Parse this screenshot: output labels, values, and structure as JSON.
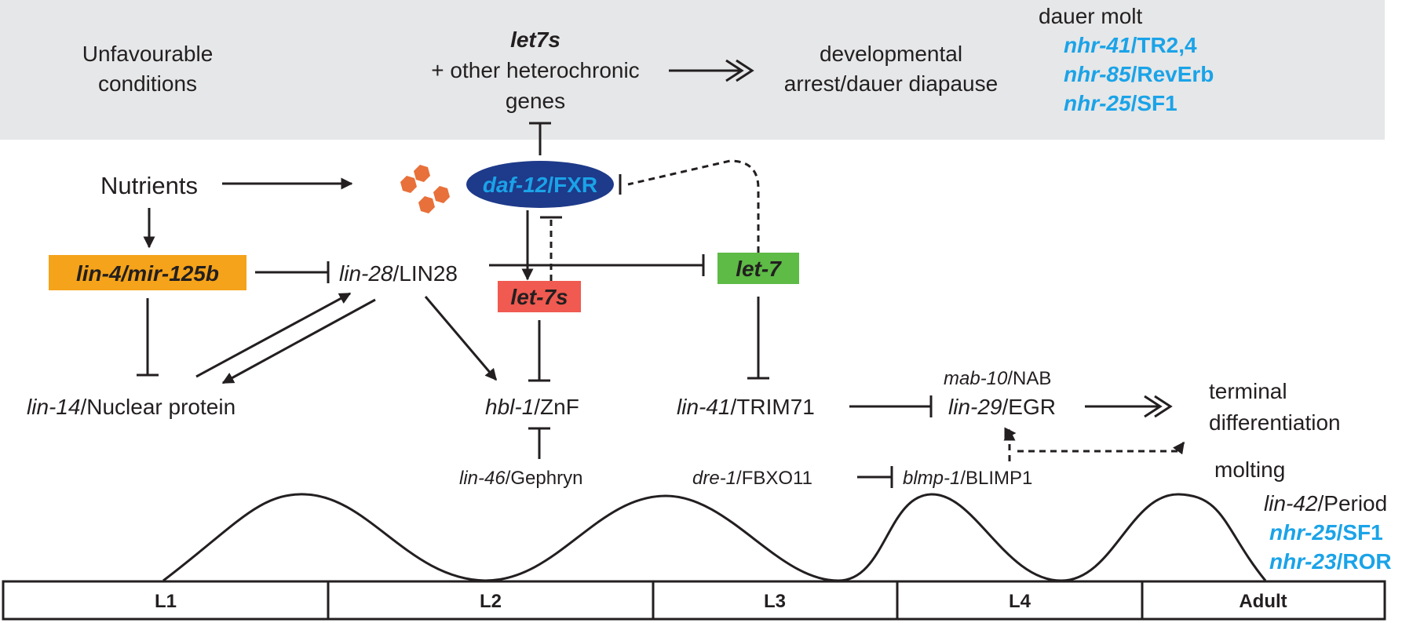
{
  "top_panel": {
    "unfavourable_1": "Unfavourable",
    "unfavourable_2": "conditions",
    "let7s_title": "let7s",
    "other_genes_1": "+ other heterochronic",
    "other_genes_2": "genes",
    "arrest_1": "developmental",
    "arrest_2": "arrest/dauer diapause",
    "dauer_molt": "dauer molt",
    "dauer_genes": [
      {
        "gene": "nhr-41",
        "protein": "/TR2,4"
      },
      {
        "gene": "nhr-85",
        "protein": "/RevErb"
      },
      {
        "gene": "nhr-25",
        "protein": "/SF1"
      }
    ]
  },
  "nodes": {
    "nutrients": "Nutrients",
    "daf12_gene": "daf-12",
    "daf12_protein": "/FXR",
    "lin4": "lin-4/mir-125b",
    "lin28_gene": "lin-28",
    "lin28_protein": "/LIN28",
    "let7s_box": "let-7s",
    "let7_box": "let-7",
    "lin14_gene": "lin-14",
    "lin14_protein": "/Nuclear protein",
    "hbl1_gene": "hbl-1",
    "hbl1_protein": "/ZnF",
    "lin46_gene": "lin-46",
    "lin46_protein": "/Gephryn",
    "lin41_gene": "lin-41",
    "lin41_protein": "/TRIM71",
    "mab10_gene": "mab-10",
    "mab10_protein": "/NAB",
    "lin29_gene": "lin-29",
    "lin29_protein": "/EGR",
    "dre1_gene": "dre-1",
    "dre1_protein": "/FBXO11",
    "blmp1_gene": "blmp-1",
    "blmp1_protein": "/BLIMP1",
    "terminal_1": "terminal",
    "terminal_2": "differentiation"
  },
  "molting": {
    "title": "molting",
    "genes": [
      {
        "gene": "lin-42",
        "protein": "/Period",
        "highlight": false
      },
      {
        "gene": "nhr-25",
        "protein": "/SF1",
        "highlight": true
      },
      {
        "gene": "nhr-23",
        "protein": "/ROR",
        "highlight": true
      }
    ]
  },
  "timeline": {
    "stages": [
      "L1",
      "L2",
      "L3",
      "L4",
      "Adult"
    ]
  },
  "colors": {
    "panel_bg": "#e6e7e8",
    "daf12_oval": "#1e3a8a",
    "daf12_text": "#1aa3e8",
    "lin4_box": "#f5a31a",
    "let7s_box": "#f05a50",
    "let7_box": "#5dbb46",
    "ligand": "#e8703a",
    "gene_highlight": "#1aa3e8"
  }
}
